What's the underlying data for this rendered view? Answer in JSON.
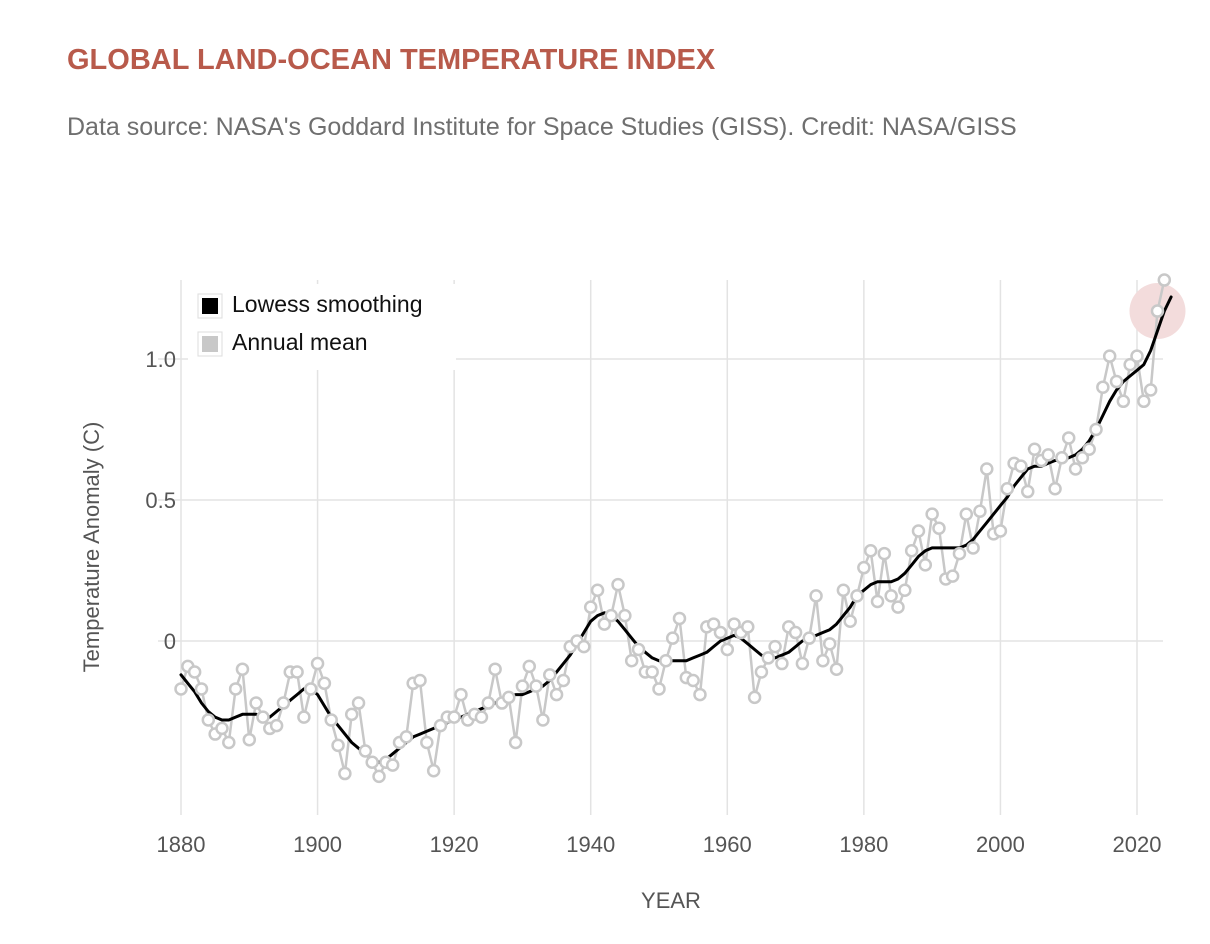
{
  "header": {
    "title": "GLOBAL LAND-OCEAN TEMPERATURE INDEX",
    "subtitle": "Data source: NASA's Goddard Institute for Space Studies (GISS). Credit: NASA/GISS"
  },
  "colors": {
    "title": "#b85a4b",
    "annual": "#c8c8c8",
    "lowess": "#000000",
    "highlight": "#f3dcdc",
    "grid": "#e3e3e3"
  },
  "chart_data": {
    "type": "line",
    "title": "GLOBAL LAND-OCEAN TEMPERATURE INDEX",
    "xlabel": "YEAR",
    "ylabel": "Temperature Anomaly (C)",
    "xlim": [
      1880,
      2024
    ],
    "ylim": [
      -0.62,
      1.29
    ],
    "x_ticks": [
      1880,
      1900,
      1920,
      1940,
      1960,
      1980,
      2000,
      2020
    ],
    "y_ticks": [
      {
        "value": 0,
        "label": "0"
      },
      {
        "value": 0.5,
        "label": "0.5"
      },
      {
        "value": 1.0,
        "label": "1.0"
      }
    ],
    "grid": true,
    "legend": {
      "position": "top-left",
      "items": [
        {
          "name": "Lowess smoothing",
          "color": "#000000"
        },
        {
          "name": "Annual mean",
          "color": "#c8c8c8"
        }
      ]
    },
    "highlight_year": 2023,
    "series": [
      {
        "name": "Annual mean",
        "start_year": 1880,
        "values": [
          -0.17,
          -0.09,
          -0.11,
          -0.17,
          -0.28,
          -0.33,
          -0.31,
          -0.36,
          -0.17,
          -0.1,
          -0.35,
          -0.22,
          -0.27,
          -0.31,
          -0.3,
          -0.22,
          -0.11,
          -0.11,
          -0.27,
          -0.17,
          -0.08,
          -0.15,
          -0.28,
          -0.37,
          -0.47,
          -0.26,
          -0.22,
          -0.39,
          -0.43,
          -0.48,
          -0.43,
          -0.44,
          -0.36,
          -0.34,
          -0.15,
          -0.14,
          -0.36,
          -0.46,
          -0.3,
          -0.27,
          -0.27,
          -0.19,
          -0.28,
          -0.26,
          -0.27,
          -0.22,
          -0.1,
          -0.22,
          -0.2,
          -0.36,
          -0.16,
          -0.09,
          -0.16,
          -0.28,
          -0.12,
          -0.19,
          -0.14,
          -0.02,
          0.0,
          -0.02,
          0.12,
          0.18,
          0.06,
          0.09,
          0.2,
          0.09,
          -0.07,
          -0.03,
          -0.11,
          -0.11,
          -0.17,
          -0.07,
          0.01,
          0.08,
          -0.13,
          -0.14,
          -0.19,
          0.05,
          0.06,
          0.03,
          -0.03,
          0.06,
          0.03,
          0.05,
          -0.2,
          -0.11,
          -0.06,
          -0.02,
          -0.08,
          0.05,
          0.03,
          -0.08,
          0.01,
          0.16,
          -0.07,
          -0.01,
          -0.1,
          0.18,
          0.07,
          0.16,
          0.26,
          0.32,
          0.14,
          0.31,
          0.16,
          0.12,
          0.18,
          0.32,
          0.39,
          0.27,
          0.45,
          0.4,
          0.22,
          0.23,
          0.31,
          0.45,
          0.33,
          0.46,
          0.61,
          0.38,
          0.39,
          0.54,
          0.63,
          0.62,
          0.53,
          0.68,
          0.64,
          0.66,
          0.54,
          0.65,
          0.72,
          0.61,
          0.65,
          0.68,
          0.75,
          0.9,
          1.01,
          0.92,
          0.85,
          0.98,
          1.01,
          0.85,
          0.89,
          1.17,
          1.28
        ]
      },
      {
        "name": "Lowess smoothing",
        "start_year": 1880,
        "values": [
          -0.12,
          -0.15,
          -0.18,
          -0.22,
          -0.25,
          -0.27,
          -0.28,
          -0.28,
          -0.27,
          -0.26,
          -0.26,
          -0.26,
          -0.27,
          -0.27,
          -0.25,
          -0.23,
          -0.21,
          -0.19,
          -0.17,
          -0.17,
          -0.19,
          -0.23,
          -0.27,
          -0.3,
          -0.33,
          -0.36,
          -0.38,
          -0.4,
          -0.42,
          -0.43,
          -0.42,
          -0.4,
          -0.38,
          -0.36,
          -0.34,
          -0.33,
          -0.32,
          -0.31,
          -0.3,
          -0.29,
          -0.28,
          -0.27,
          -0.26,
          -0.25,
          -0.24,
          -0.23,
          -0.22,
          -0.21,
          -0.2,
          -0.19,
          -0.19,
          -0.18,
          -0.17,
          -0.16,
          -0.14,
          -0.11,
          -0.08,
          -0.05,
          -0.01,
          0.03,
          0.07,
          0.09,
          0.1,
          0.09,
          0.07,
          0.04,
          0.01,
          -0.02,
          -0.04,
          -0.06,
          -0.07,
          -0.07,
          -0.07,
          -0.07,
          -0.07,
          -0.06,
          -0.05,
          -0.04,
          -0.02,
          0.0,
          0.01,
          0.02,
          0.01,
          -0.01,
          -0.03,
          -0.05,
          -0.06,
          -0.06,
          -0.05,
          -0.04,
          -0.02,
          0.0,
          0.01,
          0.02,
          0.03,
          0.04,
          0.06,
          0.09,
          0.12,
          0.16,
          0.18,
          0.2,
          0.21,
          0.21,
          0.21,
          0.22,
          0.24,
          0.27,
          0.3,
          0.32,
          0.33,
          0.33,
          0.33,
          0.33,
          0.33,
          0.34,
          0.36,
          0.39,
          0.42,
          0.45,
          0.48,
          0.51,
          0.55,
          0.58,
          0.61,
          0.62,
          0.62,
          0.63,
          0.64,
          0.64,
          0.65,
          0.66,
          0.68,
          0.71,
          0.75,
          0.8,
          0.85,
          0.89,
          0.92,
          0.94,
          0.96,
          0.98,
          1.03,
          1.1,
          1.17,
          1.22
        ]
      }
    ]
  }
}
